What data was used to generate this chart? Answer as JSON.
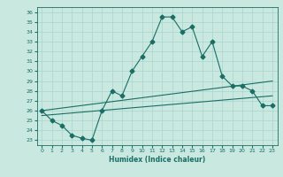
{
  "title": "",
  "xlabel": "Humidex (Indice chaleur)",
  "ylabel": "",
  "bg_color": "#c8e8e0",
  "grid_color": "#aad4cc",
  "line_color": "#1a6e64",
  "xlim": [
    -0.5,
    23.5
  ],
  "ylim": [
    22.5,
    36.5
  ],
  "xticks": [
    0,
    1,
    2,
    3,
    4,
    5,
    6,
    7,
    8,
    9,
    10,
    11,
    12,
    13,
    14,
    15,
    16,
    17,
    18,
    19,
    20,
    21,
    22,
    23
  ],
  "yticks": [
    23,
    24,
    25,
    26,
    27,
    28,
    29,
    30,
    31,
    32,
    33,
    34,
    35,
    36
  ],
  "series": [
    {
      "x": [
        0,
        1,
        2,
        3,
        4,
        5,
        6,
        7,
        8,
        9,
        10,
        11,
        12,
        13,
        14,
        15,
        16,
        17,
        18,
        19,
        20,
        21,
        22,
        23
      ],
      "y": [
        26.0,
        25.0,
        24.5,
        23.5,
        23.2,
        23.0,
        26.0,
        28.0,
        27.5,
        30.0,
        31.5,
        33.0,
        35.5,
        35.5,
        34.0,
        34.5,
        31.5,
        33.0,
        29.5,
        28.5,
        28.5,
        28.0,
        26.5,
        26.5
      ],
      "marker": "D",
      "markersize": 2.5
    },
    {
      "x": [
        0,
        23
      ],
      "y": [
        26.0,
        29.0
      ],
      "marker": null,
      "markersize": 0
    },
    {
      "x": [
        0,
        23
      ],
      "y": [
        25.5,
        27.5
      ],
      "marker": null,
      "markersize": 0
    }
  ]
}
